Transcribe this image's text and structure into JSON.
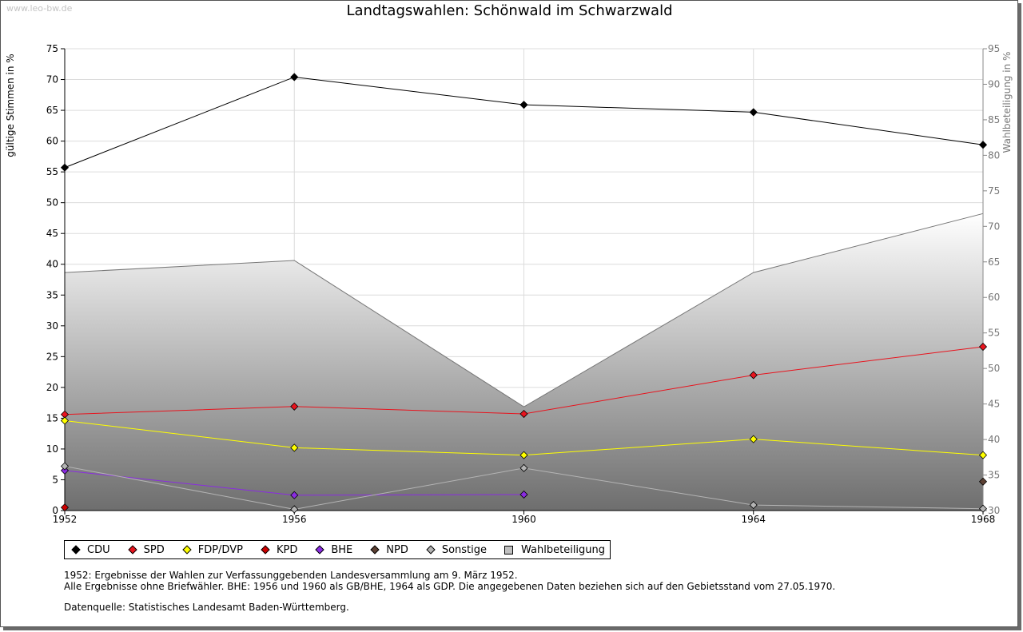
{
  "watermark": "www.leo-bw.de",
  "chart_data": {
    "type": "line",
    "title": "Landtagswahlen: Schönwald im Schwarzwald",
    "ylabel": "gültige Stimmen in %",
    "y2label": "Wahlbeteiligung in %",
    "x": [
      "1952",
      "1956",
      "1960",
      "1964",
      "1968"
    ],
    "ylim": [
      0,
      75
    ],
    "y2lim": [
      30,
      95
    ],
    "yticks": [
      0,
      5,
      10,
      15,
      20,
      25,
      30,
      35,
      40,
      45,
      50,
      55,
      60,
      65,
      70,
      75
    ],
    "y2ticks": [
      30,
      35,
      40,
      45,
      50,
      55,
      60,
      65,
      70,
      75,
      80,
      85,
      90,
      95
    ],
    "grid": true,
    "series": [
      {
        "name": "CDU",
        "color": "#000000",
        "values": [
          55.7,
          70.4,
          65.9,
          64.7,
          59.4
        ]
      },
      {
        "name": "SPD",
        "color": "#e8141e",
        "values": [
          15.6,
          16.9,
          15.7,
          22.0,
          26.6
        ]
      },
      {
        "name": "FDP/DVP",
        "color": "#ffff00",
        "values": [
          14.6,
          10.2,
          9.0,
          11.6,
          9.0
        ]
      },
      {
        "name": "KPD",
        "color": "#cc0000",
        "values": [
          0.5,
          null,
          null,
          null,
          null
        ]
      },
      {
        "name": "BHE",
        "color": "#8a2be2",
        "values": [
          6.5,
          2.5,
          2.6,
          null,
          null
        ]
      },
      {
        "name": "NPD",
        "color": "#5c4033",
        "values": [
          null,
          null,
          null,
          null,
          4.7
        ]
      },
      {
        "name": "Sonstige",
        "color": "#b4b4b4",
        "values": [
          7.2,
          0.2,
          6.9,
          0.9,
          0.3
        ]
      }
    ],
    "turnout": {
      "name": "Wahlbeteiligung",
      "axis": "right",
      "values": [
        63.5,
        65.2,
        44.6,
        63.5,
        71.8
      ]
    }
  },
  "notes": {
    "line1": "1952: Ergebnisse der Wahlen zur Verfassunggebenden Landesversammlung am 9. März 1952.",
    "line2": "Alle Ergebnisse ohne Briefwähler. BHE: 1956 und 1960 als GB/BHE, 1964 als GDP. Die angegebenen Daten beziehen sich auf den Gebietsstand vom 27.05.1970.",
    "source": "Datenquelle: Statistisches Landesamt Baden-Württemberg."
  }
}
